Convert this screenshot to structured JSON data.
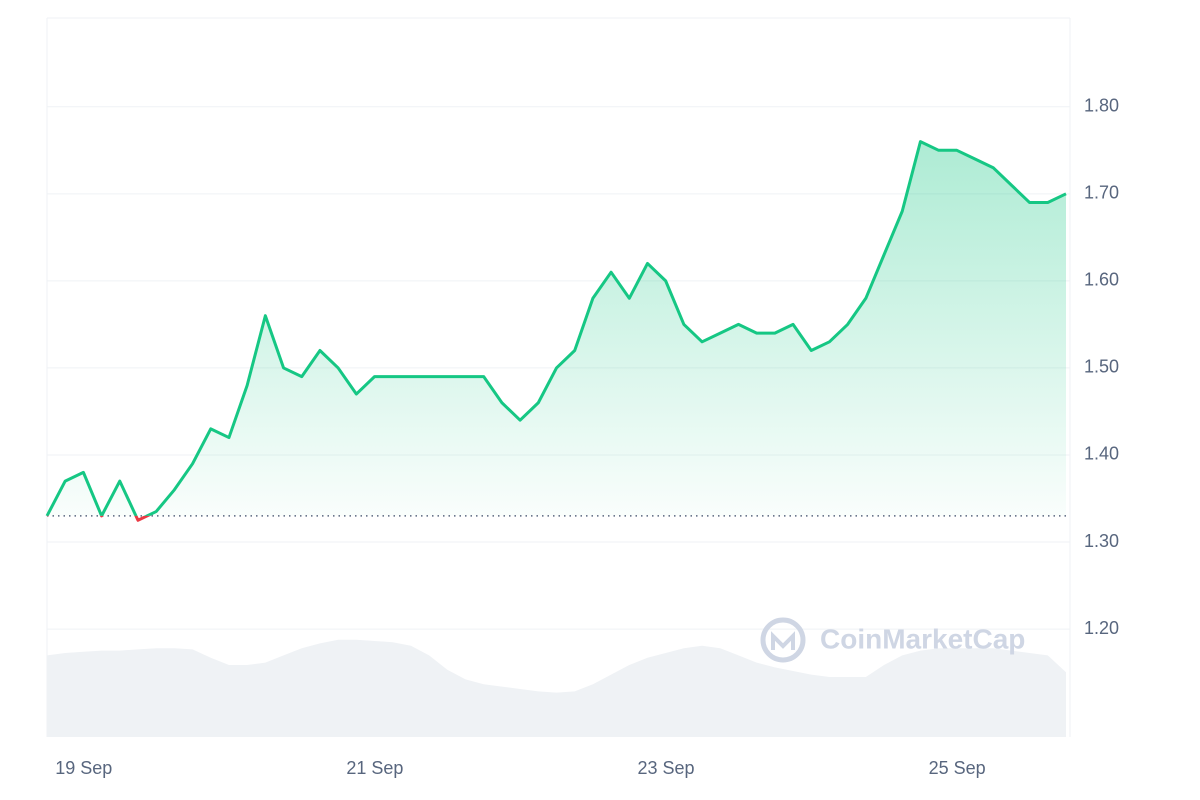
{
  "chart_data": {
    "type": "line",
    "categories": [
      null,
      "19 Sep",
      null,
      null,
      null,
      null,
      null,
      null,
      null,
      null,
      null,
      null,
      null,
      null,
      null,
      null,
      null,
      "21 Sep",
      null,
      null,
      null,
      null,
      null,
      null,
      null,
      null,
      null,
      null,
      null,
      null,
      null,
      null,
      null,
      "23 Sep",
      null,
      null,
      null,
      null,
      null,
      null,
      null,
      null,
      null,
      null,
      null,
      null,
      null,
      null,
      null,
      "25 Sep",
      null,
      null,
      null,
      null,
      null,
      null,
      null
    ],
    "series": [
      {
        "name": "Price",
        "color": "#16c784",
        "below_color": "#ea3943",
        "values": [
          1.33,
          1.37,
          1.38,
          1.33,
          1.37,
          1.325,
          1.335,
          1.36,
          1.39,
          1.43,
          1.42,
          1.48,
          1.56,
          1.5,
          1.49,
          1.52,
          1.5,
          1.47,
          1.49,
          1.49,
          1.49,
          1.49,
          1.49,
          1.49,
          1.49,
          1.46,
          1.44,
          1.46,
          1.5,
          1.52,
          1.58,
          1.61,
          1.58,
          1.62,
          1.6,
          1.55,
          1.53,
          1.54,
          1.55,
          1.54,
          1.54,
          1.55,
          1.52,
          1.53,
          1.55,
          1.58,
          1.63,
          1.68,
          1.76,
          1.75,
          1.75,
          1.74,
          1.73,
          1.71,
          1.69,
          1.69,
          1.7
        ]
      },
      {
        "name": "Volume",
        "color": "#eff2f5",
        "axis": "volume",
        "values": [
          68,
          70,
          71,
          72,
          72,
          73,
          74,
          74,
          73,
          66,
          60,
          60,
          62,
          68,
          74,
          78,
          81,
          81,
          80,
          79,
          76,
          68,
          56,
          48,
          44,
          42,
          40,
          38,
          37,
          38,
          44,
          52,
          60,
          66,
          70,
          74,
          76,
          74,
          68,
          62,
          58,
          55,
          52,
          50,
          50,
          50,
          60,
          68,
          72,
          74,
          74,
          74,
          74,
          72,
          70,
          68,
          54
        ]
      }
    ],
    "baseline": 1.33,
    "ylim": [
      1.076,
      1.902
    ],
    "volume_lim": [
      0,
      100
    ],
    "yticks": [
      {
        "value": 1.2,
        "label": "1.20"
      },
      {
        "value": 1.3,
        "label": "1.30"
      },
      {
        "value": 1.4,
        "label": "1.40"
      },
      {
        "value": 1.5,
        "label": "1.50"
      },
      {
        "value": 1.6,
        "label": "1.60"
      },
      {
        "value": 1.7,
        "label": "1.70"
      },
      {
        "value": 1.8,
        "label": "1.80"
      }
    ],
    "grid": true,
    "watermark": "CoinMarketCap"
  }
}
